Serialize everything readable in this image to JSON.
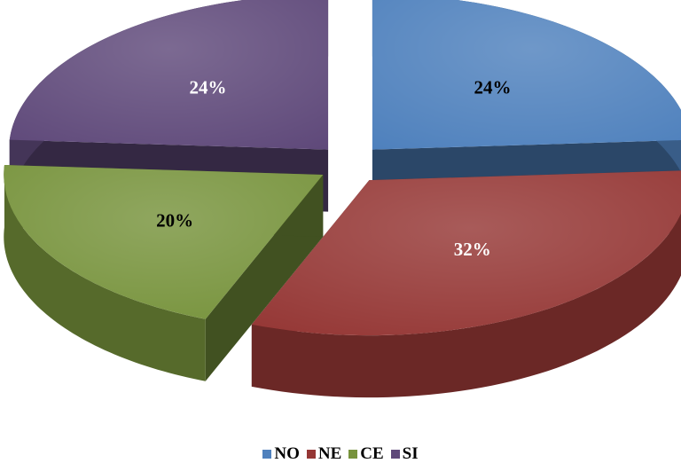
{
  "chart_data": {
    "type": "pie",
    "style": "3d-exploded",
    "categories": [
      "NO",
      "NE",
      "CE",
      "SI"
    ],
    "values": [
      24,
      32,
      20,
      24
    ],
    "labels": [
      "24%",
      "32%",
      "20%",
      "24%"
    ],
    "colors": [
      "#4F81BD",
      "#953735",
      "#77933C",
      "#5F497A"
    ],
    "label_colors": [
      "#000000",
      "#ffffff",
      "#000000",
      "#ffffff"
    ],
    "legend_position": "bottom",
    "title": ""
  }
}
